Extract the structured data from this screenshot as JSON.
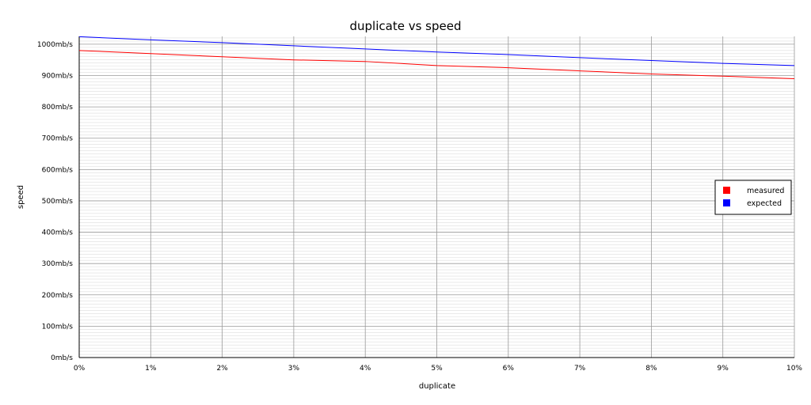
{
  "chart_data": {
    "type": "line",
    "title": "duplicate vs speed",
    "xlabel": "duplicate",
    "ylabel": "speed",
    "x": [
      0,
      1,
      2,
      3,
      4,
      5,
      6,
      7,
      8,
      9,
      10
    ],
    "x_tick_labels": [
      "0%",
      "1%",
      "2%",
      "3%",
      "4%",
      "5%",
      "6%",
      "7%",
      "8%",
      "9%",
      "10%"
    ],
    "y_tick_labels": [
      "0mb/s",
      "100mb/s",
      "200mb/s",
      "300mb/s",
      "400mb/s",
      "500mb/s",
      "600mb/s",
      "700mb/s",
      "800mb/s",
      "900mb/s",
      "1000mb/s"
    ],
    "y_ticks": [
      0,
      100,
      200,
      300,
      400,
      500,
      600,
      700,
      800,
      900,
      1000
    ],
    "xlim": [
      0,
      10
    ],
    "ylim": [
      0,
      1025
    ],
    "grid": true,
    "legend_position": "right",
    "series": [
      {
        "name": "measured",
        "color": "#ff0000",
        "values": [
          980,
          970,
          960,
          950,
          945,
          932,
          925,
          915,
          905,
          898,
          890
        ]
      },
      {
        "name": "expected",
        "color": "#0000ff",
        "values": [
          1024,
          1014,
          1005,
          995,
          985,
          975,
          967,
          957,
          948,
          939,
          932
        ]
      }
    ]
  }
}
